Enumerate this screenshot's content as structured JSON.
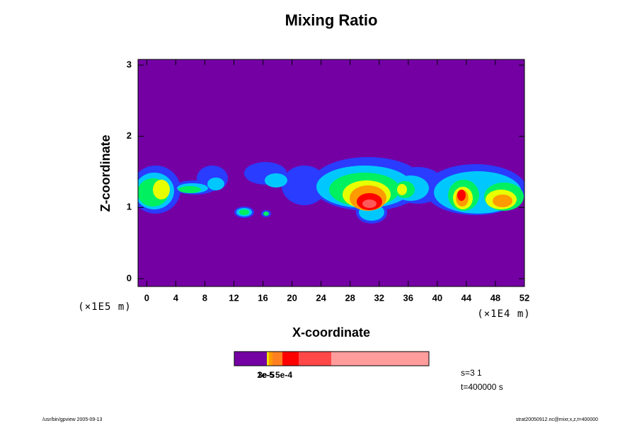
{
  "chart_data": {
    "type": "contour",
    "title": "Mixing Ratio",
    "x_label": "X-coordinate",
    "y_label": "Z-coordinate",
    "x_unit": "(×1E4 m)",
    "y_unit": "(×1E5 m)",
    "xlim": [
      -1.2,
      52
    ],
    "xticks": [
      0,
      4,
      8,
      12,
      16,
      20,
      24,
      28,
      32,
      36,
      40,
      44,
      48,
      52
    ],
    "ylim": [
      -0.11,
      3.08
    ],
    "yticks": [
      0,
      1,
      2,
      3
    ],
    "colorbar": {
      "colors": [
        "#7400a4",
        "#f0e000",
        "#ff9a00",
        "#ff8020",
        "#ff0000",
        "#ff4848",
        "#ff9c9c"
      ],
      "labels": [
        "1e-5",
        "3e-5",
        "5e-4"
      ]
    },
    "annotations": [
      "s=3 1",
      "t=400000 s"
    ],
    "footer_left": "/usr/bin/gpview 2005-09-13",
    "footer_right": "strat20050912.nc@mixr,x,z,t=400000"
  }
}
